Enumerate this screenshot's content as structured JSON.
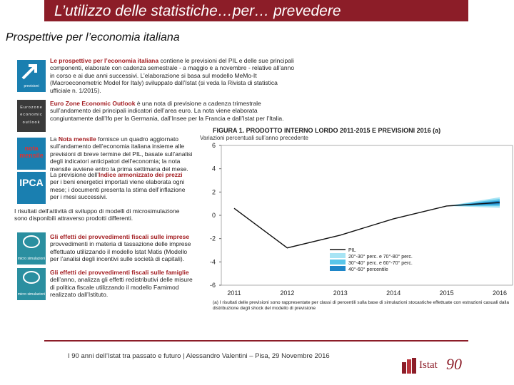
{
  "header": {
    "title": "L’utilizzo delle statistiche…per… prevedere"
  },
  "subtitle": "Prospettive per l’economia italiana",
  "logos": {
    "previsioni": "previsioni",
    "eurozone": "Eurozone economic outlook",
    "nota": "nota mensile",
    "ipca": "IPCA",
    "micro1": "micro simulazioni",
    "micro2": "micro simulazioni"
  },
  "paragraphs": {
    "p1_lead": "Le prospettive per l’economia italiana",
    "p1": " contiene le previsioni del PIL e delle sue principali componenti, elaborate con cadenza semestrale - a maggio e a novembre - relative all’anno in corso e ai due anni successivi. L’elaborazione si basa sul modello MeMo-It (Macroeconometric Model for Italy) sviluppato dall’Istat (si veda la Rivista di statistica ufficiale n. 1/2015).",
    "p2_lead": "Euro Zone Economic Outlook",
    "p2": " è una nota di previsione a cadenza trimestrale sull’andamento dei principali indicatori dell’area euro. La nota viene elaborata congiuntamente dall’Ifo per la Germania, dall’Insee per la Francia e dall’Istat per l’Italia.",
    "p3_pre": "La ",
    "p3_lead": "Nota mensile",
    "p3": " fornisce un quadro aggiornato sull’andamento dell’economia italiana insieme alle previsioni di breve termine del PIL, basate sull’analisi degli indicatori anticipatori dell’economia; la nota mensile avviene entro la prima settimana del mese.",
    "p4_pre": "La previsione dell’",
    "p4_lead": "Indice armonizzato dei prezzi",
    "p4": " per i beni energetici importati viene elaborata ogni mese; i documenti presenta la stima dell’inflazione per i mesi successivi.",
    "p5": "I risultati dell’attività di sviluppo di modelli di microsimulazione sono disponibili attraverso prodotti differenti.",
    "p6_lead": "Gli effetti dei provvedimenti fiscali sulle imprese",
    "p6": " provvedimenti in materia di tassazione delle imprese effettuato utilizzando il modello Istat Matis (Modello per l’analisi degli incentivi sulle società di capitali).",
    "p7_lead": "Gli effetti dei provvedimenti fiscali sulle famiglie",
    "p7": " dell’anno, analizza gli effetti redistributivi delle misure di politica fiscale utilizzando il modello Famimod realizzato dall’Istituto."
  },
  "chart_data": {
    "type": "line",
    "title": "FIGURA 1. PRODOTTO INTERNO LORDO 2011-2015 E PREVISIONI 2016 (a)",
    "subtitle": "Variazioni percentuali sull’anno precedente",
    "x": [
      2011,
      2012,
      2013,
      2014,
      2015,
      2016
    ],
    "xlabels": [
      "2011",
      "2012",
      "2013",
      "2014",
      "2015",
      "2016"
    ],
    "yticks": [
      -6,
      -4,
      -2,
      0,
      2,
      4,
      6
    ],
    "ylim": [
      -6,
      6
    ],
    "series": [
      {
        "name": "PIL",
        "values": [
          0.6,
          -2.8,
          -1.7,
          -0.3,
          0.8,
          1.1
        ]
      }
    ],
    "fan": {
      "start_year": 2015,
      "center_2016": 1.1,
      "bands": [
        {
          "name": "20°-30° perc. e 70°-80° perc.",
          "half_width": 0.45,
          "color": "#a8e4f4"
        },
        {
          "name": "30°-40° perc. e 60°-70° perc.",
          "half_width": 0.3,
          "color": "#59c6ea"
        },
        {
          "name": "40°-60° percentile",
          "half_width": 0.15,
          "color": "#1e86c8"
        }
      ]
    },
    "legend": [
      "PIL",
      "20°-30° perc. e 70°-80° perc.",
      "30°-40° perc. e 60°-70° perc.",
      "40°-60° percentile"
    ],
    "note": "(a) I risultati delle previsioni sono rappresentate per classi di percentili sulla base di simulazioni stocastiche effettuate con estrazioni casuali dalla distribuzione degli shock del modello di previsione"
  },
  "footer": {
    "text": "I 90 anni dell’Istat tra passato e futuro | Alessandro Valentini – Pisa, 29 Novembre 2016"
  },
  "brand": {
    "name": "Istat",
    "number": "90",
    "accent": "#8c1d28"
  }
}
